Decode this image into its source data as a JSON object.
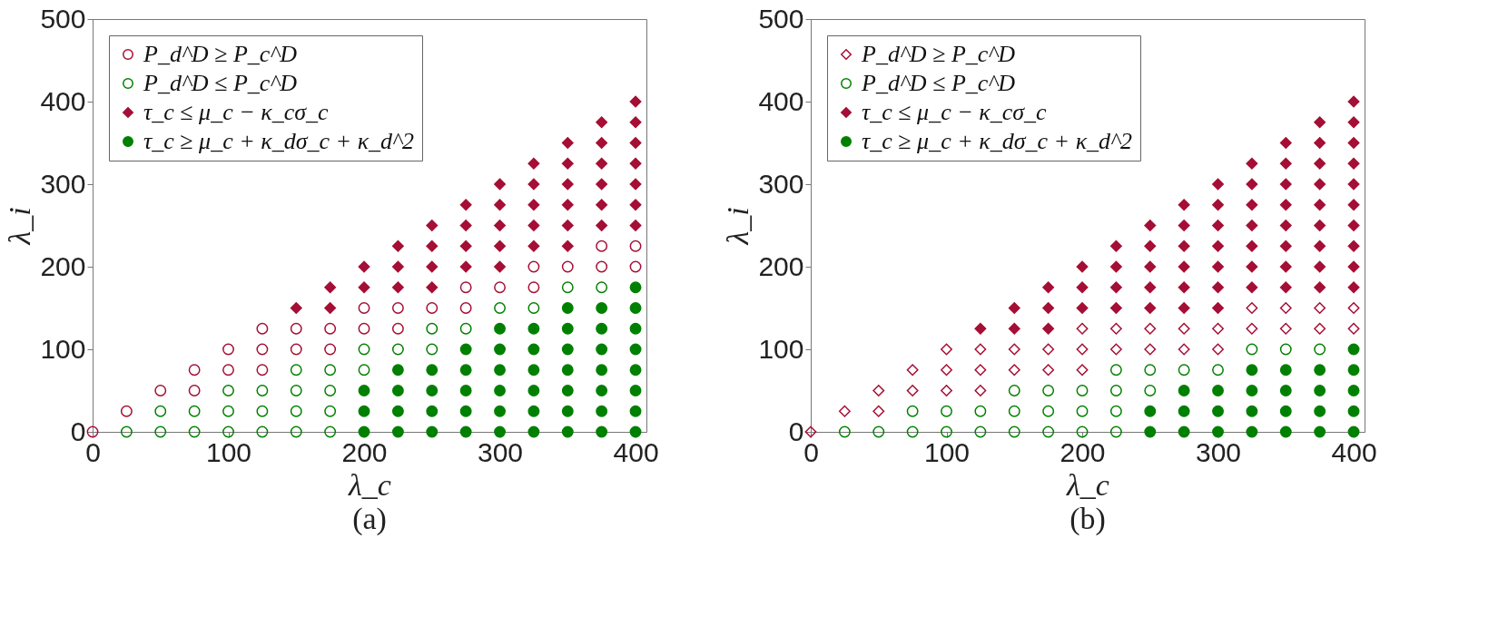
{
  "chart_data": [
    {
      "type": "scatter",
      "title": "(a)",
      "xlabel": "λ_c",
      "ylabel": "λ_i",
      "xlim": [
        0,
        408
      ],
      "ylim": [
        0,
        500
      ],
      "xticks": [
        0,
        100,
        200,
        300,
        400
      ],
      "yticks": [
        0,
        100,
        200,
        300,
        400,
        500
      ],
      "grid": false,
      "legend": "top left",
      "series": [
        {
          "name": "P_d^D ≥ P_c^D",
          "color": "#a50e35",
          "marker": "circle",
          "x": [
            0,
            25,
            50,
            75,
            75,
            100,
            100,
            125,
            125,
            125,
            150,
            150,
            175,
            175,
            200,
            200,
            225,
            225,
            250,
            275,
            275,
            300,
            325,
            325,
            350,
            375,
            375,
            400,
            400
          ],
          "values": [
            0,
            25,
            50,
            50,
            75,
            75,
            100,
            75,
            100,
            125,
            100,
            125,
            100,
            125,
            125,
            150,
            125,
            150,
            150,
            150,
            175,
            175,
            175,
            200,
            200,
            200,
            225,
            200,
            225
          ]
        },
        {
          "name": "P_d^D ≤ P_c^D",
          "color": "#008000",
          "marker": "circle",
          "x": [
            25,
            50,
            50,
            75,
            75,
            100,
            100,
            100,
            125,
            125,
            125,
            150,
            150,
            150,
            150,
            175,
            175,
            175,
            175,
            200,
            200,
            225,
            250,
            250,
            275,
            300,
            325,
            350,
            375
          ],
          "values": [
            0,
            0,
            25,
            0,
            25,
            0,
            25,
            50,
            0,
            25,
            50,
            0,
            25,
            50,
            75,
            0,
            25,
            50,
            75,
            75,
            100,
            100,
            100,
            125,
            125,
            150,
            150,
            175,
            175
          ]
        },
        {
          "name": "τ_c ≤ μ_c − κ_cσ_c",
          "color": "#a50e35",
          "marker": "diamond",
          "x": [
            150,
            175,
            175,
            200,
            200,
            225,
            225,
            225,
            250,
            250,
            250,
            250,
            275,
            275,
            275,
            275,
            300,
            300,
            300,
            300,
            300,
            325,
            325,
            325,
            325,
            325,
            350,
            350,
            350,
            350,
            350,
            350,
            375,
            375,
            375,
            375,
            375,
            375,
            400,
            400,
            400,
            400,
            400,
            400,
            400
          ],
          "values": [
            150,
            150,
            175,
            175,
            200,
            175,
            200,
            225,
            175,
            200,
            225,
            250,
            200,
            225,
            250,
            275,
            200,
            225,
            250,
            275,
            300,
            225,
            250,
            275,
            300,
            325,
            225,
            250,
            275,
            300,
            325,
            350,
            250,
            275,
            300,
            325,
            350,
            375,
            250,
            275,
            300,
            325,
            350,
            375,
            400
          ]
        },
        {
          "name": "τ_c ≥ μ_c + κ_dσ_c + κ_d^2",
          "color": "#008000",
          "marker": "circle",
          "x": [
            200,
            200,
            200,
            225,
            225,
            225,
            225,
            250,
            250,
            250,
            250,
            275,
            275,
            275,
            275,
            275,
            300,
            300,
            300,
            300,
            300,
            300,
            325,
            325,
            325,
            325,
            325,
            325,
            350,
            350,
            350,
            350,
            350,
            350,
            350,
            375,
            375,
            375,
            375,
            375,
            375,
            375,
            400,
            400,
            400,
            400,
            400,
            400,
            400,
            400
          ],
          "values": [
            0,
            25,
            50,
            0,
            25,
            50,
            75,
            0,
            25,
            50,
            75,
            0,
            25,
            50,
            75,
            100,
            0,
            25,
            50,
            75,
            100,
            125,
            0,
            25,
            50,
            75,
            100,
            125,
            0,
            25,
            50,
            75,
            100,
            125,
            150,
            0,
            25,
            50,
            75,
            100,
            125,
            150,
            0,
            25,
            50,
            75,
            100,
            125,
            150,
            175
          ]
        }
      ]
    },
    {
      "type": "scatter",
      "title": "(b)",
      "xlabel": "λ_c",
      "ylabel": "λ_i",
      "xlim": [
        0,
        408
      ],
      "ylim": [
        0,
        500
      ],
      "xticks": [
        0,
        100,
        200,
        300,
        400
      ],
      "yticks": [
        0,
        100,
        200,
        300,
        400,
        500
      ],
      "grid": false,
      "legend": "top left",
      "series": [
        {
          "name": "P_d^D ≥ P_c^D",
          "color": "#a50e35",
          "marker": "diamond",
          "x": [
            0,
            25,
            50,
            50,
            75,
            75,
            100,
            100,
            100,
            125,
            125,
            125,
            150,
            150,
            175,
            175,
            200,
            200,
            200,
            225,
            225,
            250,
            250,
            275,
            275,
            300,
            300,
            325,
            325,
            350,
            350,
            375,
            375,
            400,
            400
          ],
          "values": [
            0,
            25,
            25,
            50,
            50,
            75,
            50,
            75,
            100,
            50,
            75,
            100,
            75,
            100,
            75,
            100,
            75,
            100,
            125,
            100,
            125,
            100,
            125,
            100,
            125,
            100,
            125,
            125,
            150,
            125,
            150,
            125,
            150,
            125,
            150
          ]
        },
        {
          "name": "P_d^D ≤ P_c^D",
          "color": "#008000",
          "marker": "circle",
          "x": [
            25,
            50,
            75,
            75,
            100,
            100,
            125,
            125,
            150,
            150,
            150,
            175,
            175,
            175,
            200,
            200,
            200,
            225,
            225,
            225,
            225,
            250,
            250,
            275,
            300,
            325,
            350,
            375
          ],
          "values": [
            0,
            0,
            0,
            25,
            0,
            25,
            0,
            25,
            0,
            25,
            50,
            0,
            25,
            50,
            0,
            25,
            50,
            0,
            25,
            50,
            75,
            50,
            75,
            75,
            75,
            100,
            100,
            100
          ]
        },
        {
          "name": "τ_c ≤ μ_c − κ_cσ_c",
          "color": "#a50e35",
          "marker": "diamond",
          "x": [
            125,
            150,
            150,
            175,
            175,
            175,
            200,
            200,
            200,
            225,
            225,
            225,
            225,
            250,
            250,
            250,
            250,
            250,
            275,
            275,
            275,
            275,
            275,
            275,
            300,
            300,
            300,
            300,
            300,
            300,
            300,
            325,
            325,
            325,
            325,
            325,
            325,
            325,
            350,
            350,
            350,
            350,
            350,
            350,
            350,
            350,
            375,
            375,
            375,
            375,
            375,
            375,
            375,
            375,
            375,
            400,
            400,
            400,
            400,
            400,
            400,
            400,
            400,
            400,
            400
          ],
          "values": [
            125,
            125,
            150,
            125,
            150,
            175,
            150,
            175,
            200,
            150,
            175,
            200,
            225,
            150,
            175,
            200,
            225,
            250,
            150,
            175,
            200,
            225,
            250,
            275,
            150,
            175,
            200,
            225,
            250,
            275,
            300,
            175,
            200,
            225,
            250,
            275,
            300,
            325,
            175,
            200,
            225,
            250,
            275,
            300,
            325,
            350,
            175,
            200,
            225,
            250,
            275,
            300,
            325,
            350,
            375,
            175,
            200,
            225,
            250,
            275,
            300,
            325,
            350,
            375,
            400
          ]
        },
        {
          "name": "τ_c ≥ μ_c + κ_dσ_c + κ_d^2",
          "color": "#008000",
          "marker": "circle",
          "x": [
            250,
            250,
            275,
            275,
            275,
            300,
            300,
            300,
            325,
            325,
            325,
            325,
            350,
            350,
            350,
            350,
            375,
            375,
            375,
            375,
            400,
            400,
            400,
            400,
            400
          ],
          "values": [
            0,
            25,
            0,
            25,
            50,
            0,
            25,
            50,
            0,
            25,
            50,
            75,
            0,
            25,
            50,
            75,
            0,
            25,
            50,
            75,
            0,
            25,
            50,
            75,
            100
          ]
        }
      ]
    }
  ]
}
